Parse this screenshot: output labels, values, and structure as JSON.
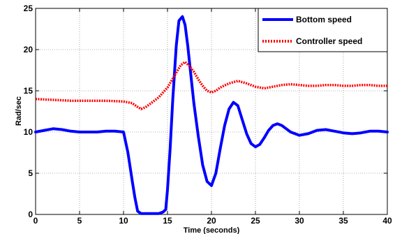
{
  "chart_data": {
    "type": "line",
    "title": "",
    "xlabel": "Time (seconds)",
    "ylabel": "Rad/sec",
    "xlim": [
      0,
      40
    ],
    "ylim": [
      0,
      25
    ],
    "xticks": [
      0,
      5,
      10,
      15,
      20,
      25,
      30,
      35,
      40
    ],
    "yticks": [
      0,
      5,
      10,
      15,
      20,
      25
    ],
    "grid": true,
    "legend_position": "top-right",
    "series": [
      {
        "name": "Bottom speed",
        "color": "#0000ff",
        "line_style": "solid",
        "x": [
          0,
          1,
          2,
          3,
          4,
          5,
          6,
          7,
          8,
          9,
          10,
          10.5,
          11,
          11.3,
          11.6,
          12,
          13,
          14,
          14.5,
          14.8,
          15,
          15.3,
          15.6,
          16,
          16.3,
          16.7,
          17,
          17.3,
          17.7,
          18,
          18.5,
          19,
          19.5,
          20,
          20.5,
          21,
          21.5,
          22,
          22.5,
          23,
          23.5,
          24,
          24.5,
          25,
          25.5,
          26,
          26.5,
          27,
          27.5,
          28,
          28.5,
          29,
          29.5,
          30,
          31,
          32,
          33,
          34,
          35,
          36,
          37,
          38,
          39,
          40
        ],
        "y": [
          10.0,
          10.2,
          10.4,
          10.3,
          10.1,
          10.0,
          10.0,
          10.0,
          10.1,
          10.1,
          10.0,
          7.5,
          4.0,
          2.0,
          0.4,
          0.1,
          0.1,
          0.1,
          0.3,
          0.6,
          3.0,
          8.0,
          14.0,
          20.5,
          23.5,
          24.0,
          23.0,
          20.5,
          16.5,
          13.5,
          9.5,
          6.0,
          4.0,
          3.5,
          5.0,
          8.0,
          10.8,
          12.8,
          13.6,
          13.2,
          11.5,
          9.8,
          8.6,
          8.2,
          8.5,
          9.3,
          10.2,
          10.8,
          11.0,
          10.8,
          10.4,
          10.0,
          9.8,
          9.6,
          9.8,
          10.2,
          10.3,
          10.1,
          9.9,
          9.8,
          9.9,
          10.1,
          10.1,
          10.0
        ]
      },
      {
        "name": "Controller speed",
        "color": "#ff0000",
        "line_style": "dotted",
        "x": [
          0,
          2,
          4,
          6,
          8,
          10,
          11,
          11.5,
          12,
          12.5,
          13,
          14,
          15,
          15.5,
          16,
          16.5,
          17,
          17.5,
          18,
          18.5,
          19,
          19.5,
          20,
          20.5,
          21,
          22,
          23,
          24,
          25,
          26,
          27,
          28,
          29,
          30,
          31,
          32,
          33,
          34,
          35,
          36,
          37,
          38,
          39,
          40
        ],
        "y": [
          14.0,
          13.9,
          13.8,
          13.8,
          13.8,
          13.7,
          13.5,
          13.1,
          12.8,
          13.0,
          13.4,
          14.2,
          15.4,
          16.3,
          17.2,
          18.1,
          18.5,
          18.0,
          17.3,
          16.4,
          15.6,
          15.0,
          14.8,
          15.0,
          15.4,
          15.9,
          16.2,
          15.9,
          15.5,
          15.3,
          15.5,
          15.7,
          15.8,
          15.7,
          15.6,
          15.6,
          15.7,
          15.7,
          15.6,
          15.6,
          15.7,
          15.7,
          15.6,
          15.6
        ]
      }
    ]
  }
}
